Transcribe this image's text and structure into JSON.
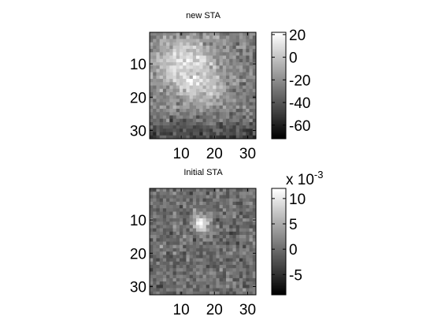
{
  "figure": {
    "background": "#ffffff"
  },
  "chart_data": [
    {
      "type": "heatmap",
      "title": "new STA",
      "grid_size": [
        32,
        32
      ],
      "colormap": "gray",
      "xticks": [
        10,
        20,
        30
      ],
      "yticks": [
        10,
        20,
        30
      ],
      "xlim": [
        1,
        32
      ],
      "ylim": [
        1,
        32
      ],
      "clim": [
        -72,
        22
      ],
      "colorbar_ticks": [
        20,
        0,
        -20,
        -40,
        -60
      ],
      "colorbar_exponent": "",
      "pattern": "broad bright region in upper-left/center rows 5-22, darker band along bottom rows 26-32",
      "seed": 17
    },
    {
      "type": "heatmap",
      "title": "Initial STA",
      "grid_size": [
        32,
        32
      ],
      "colormap": "gray",
      "xticks": [
        10,
        20,
        30
      ],
      "yticks": [
        10,
        20,
        30
      ],
      "xlim": [
        1,
        32
      ],
      "ylim": [
        1,
        32
      ],
      "clim": [
        -0.009,
        0.012
      ],
      "colorbar_ticks": [
        10,
        5,
        0,
        -5
      ],
      "colorbar_exponent": "x 10",
      "colorbar_exponent_power": "-3",
      "pattern": "small bright blob centered near column 16, row 11, on mid-gray noise",
      "seed": 42
    }
  ]
}
